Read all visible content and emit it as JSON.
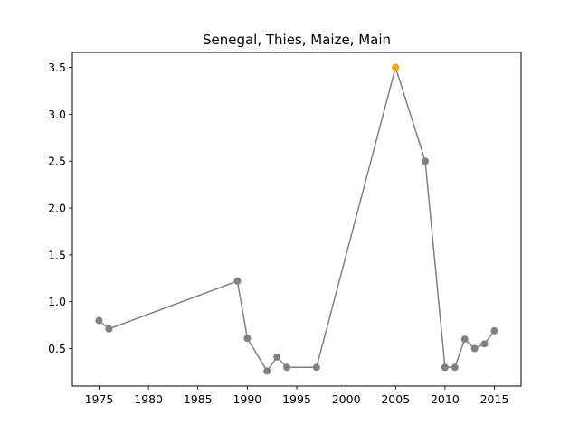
{
  "chart_data": {
    "type": "line",
    "title": "Senegal, Thies, Maize, Main",
    "xlabel": "",
    "ylabel": "",
    "xlim": [
      1972.3,
      2017.7
    ],
    "ylim": [
      0.1,
      3.66
    ],
    "xticks": [
      1975,
      1980,
      1985,
      1990,
      1995,
      2000,
      2005,
      2010,
      2015
    ],
    "yticks": [
      0.5,
      1.0,
      1.5,
      2.0,
      2.5,
      3.0,
      3.5
    ],
    "xtick_labels": [
      "1975",
      "1980",
      "1985",
      "1990",
      "1995",
      "2000",
      "2005",
      "2010",
      "2015"
    ],
    "ytick_labels": [
      "0.5",
      "1.0",
      "1.5",
      "2.0",
      "2.5",
      "3.0",
      "3.5"
    ],
    "grid": false,
    "series": [
      {
        "color": "#808080",
        "x": [
          1975,
          1976,
          1989,
          1990,
          1992,
          1993,
          1994,
          1997,
          2005,
          2008,
          2010,
          2011,
          2012,
          2013,
          2014,
          2015
        ],
        "y": [
          0.8,
          0.71,
          1.22,
          0.61,
          0.26,
          0.41,
          0.3,
          0.3,
          3.5,
          2.5,
          0.3,
          0.3,
          0.6,
          0.5,
          0.55,
          0.69
        ]
      }
    ],
    "highlight": {
      "x": 2005,
      "y": 3.5,
      "color": "#ffa500"
    }
  }
}
